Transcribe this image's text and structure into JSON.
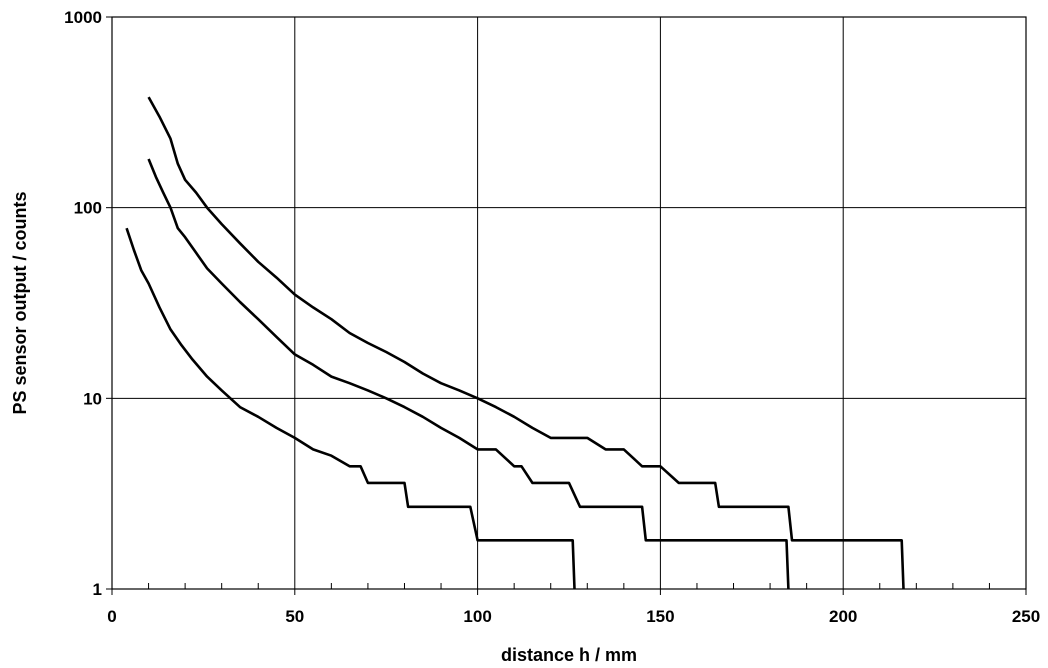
{
  "chart_data": {
    "type": "line",
    "title": "",
    "xlabel": "distance h / mm",
    "ylabel": "PS sensor output / counts",
    "xlim": [
      0,
      250
    ],
    "ylim": [
      1,
      1000
    ],
    "yscale": "log",
    "grid": true,
    "legend": "none",
    "x_ticks": [
      "0",
      "50",
      "100",
      "150",
      "200",
      "250"
    ],
    "y_ticks": [
      "1",
      "10",
      "100",
      "1000"
    ],
    "series": [
      {
        "x": [
          10,
          13,
          16,
          18,
          20,
          23,
          26,
          30,
          35,
          40,
          45,
          50,
          55,
          60,
          65,
          70,
          75,
          80,
          85,
          90,
          95,
          100,
          105,
          110,
          115,
          120,
          125,
          130,
          135,
          140,
          145,
          150,
          155,
          160,
          165,
          166,
          170,
          175,
          180,
          185,
          186,
          190,
          195,
          200,
          205,
          210,
          215,
          216,
          216.5
        ],
        "y": [
          380,
          300,
          230,
          170,
          140,
          120,
          100,
          82,
          65,
          52,
          43,
          35,
          30,
          26,
          22,
          19.5,
          17.5,
          15.5,
          13.5,
          12,
          11,
          10,
          9,
          8,
          7,
          6.2,
          6.2,
          6.2,
          5.4,
          5.4,
          4.4,
          4.4,
          3.6,
          3.6,
          3.6,
          2.7,
          2.7,
          2.7,
          2.7,
          2.7,
          1.8,
          1.8,
          1.8,
          1.8,
          1.8,
          1.8,
          1.8,
          1.8,
          1
        ]
      },
      {
        "x": [
          10,
          12,
          14,
          16,
          18,
          20,
          23,
          26,
          30,
          35,
          40,
          45,
          50,
          55,
          60,
          65,
          70,
          75,
          80,
          85,
          90,
          95,
          100,
          105,
          110,
          112,
          115,
          120,
          125,
          128,
          130,
          135,
          140,
          145,
          146,
          150,
          155,
          160,
          165,
          170,
          175,
          180,
          184.5,
          185
        ],
        "y": [
          180,
          145,
          120,
          100,
          78,
          70,
          58,
          48,
          40,
          32,
          26,
          21,
          17,
          15,
          13,
          12,
          11,
          10,
          9,
          8,
          7,
          6.2,
          5.4,
          5.4,
          4.4,
          4.4,
          3.6,
          3.6,
          3.6,
          2.7,
          2.7,
          2.7,
          2.7,
          2.7,
          1.8,
          1.8,
          1.8,
          1.8,
          1.8,
          1.8,
          1.8,
          1.8,
          1.8,
          1
        ]
      },
      {
        "x": [
          4,
          6,
          8,
          10,
          13,
          16,
          19,
          22,
          26,
          30,
          35,
          40,
          45,
          50,
          55,
          60,
          65,
          68,
          70,
          75,
          80,
          81,
          85,
          90,
          95,
          98,
          100,
          105,
          110,
          115,
          120,
          125,
          126,
          126.5
        ],
        "y": [
          78,
          60,
          47,
          40,
          30,
          23,
          19,
          16,
          13,
          11,
          9,
          8,
          7,
          6.2,
          5.4,
          5,
          4.4,
          4.4,
          3.6,
          3.6,
          3.6,
          2.7,
          2.7,
          2.7,
          2.7,
          2.7,
          1.8,
          1.8,
          1.8,
          1.8,
          1.8,
          1.8,
          1.8,
          1
        ]
      }
    ]
  }
}
